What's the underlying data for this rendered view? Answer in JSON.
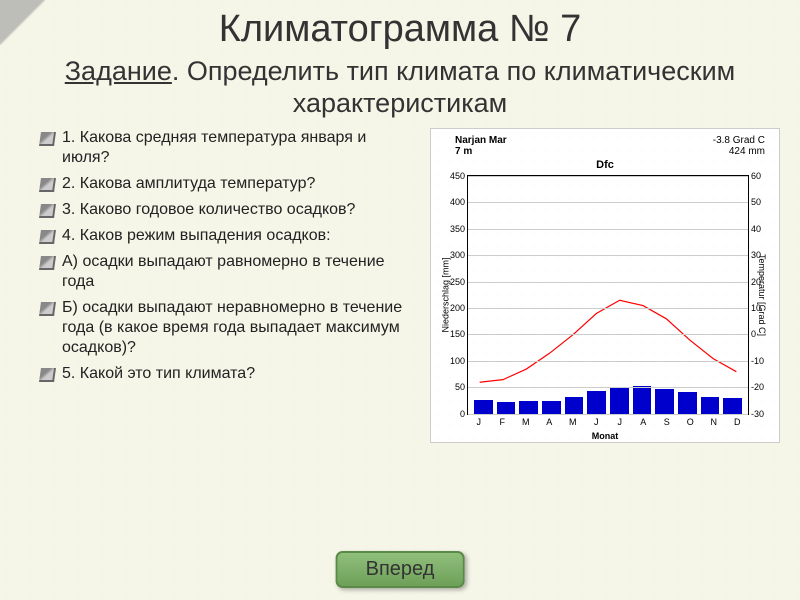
{
  "title": "Климатограмма № 7",
  "subtitle_prefix": "Задание",
  "subtitle_rest": ". Определить тип климата по климатическим характеристикам",
  "questions": [
    "1. Какова средняя температура января и июля?",
    "2. Какова амплитуда температур?",
    "3. Каково годовое количество осадков?",
    "4. Каков режим выпадения осадков:",
    "А) осадки выпадают равномерно в течение года",
    "Б) осадки выпадают неравномерно в течение года (в какое время года выпадает максимум осадков)?",
    "5. Какой это тип климата?"
  ],
  "button_label": "Вперед",
  "chart": {
    "station": "Narjan Mar",
    "elevation": "7 m",
    "mean_temp": "-3.8 Grad C",
    "annual_precip": "424 mm",
    "classification": "Dfc",
    "ylabel_left": "Niederschlag [mm]",
    "ylabel_right": "Temperatur [Grad C]",
    "xlabel": "Monat",
    "precip_max": 450,
    "precip_ticks": [
      0,
      50,
      100,
      150,
      200,
      250,
      300,
      350,
      400,
      450
    ],
    "temp_ticks": [
      -30,
      -20,
      -10,
      0,
      10,
      20,
      30,
      40,
      50,
      60
    ],
    "months": [
      "J",
      "F",
      "M",
      "A",
      "M",
      "J",
      "J",
      "A",
      "S",
      "O",
      "N",
      "D"
    ],
    "precip_values": [
      27,
      22,
      24,
      25,
      32,
      43,
      48,
      52,
      47,
      42,
      32,
      30
    ],
    "temp_values": [
      -18,
      -17,
      -13,
      -7,
      0,
      8,
      13,
      11,
      6,
      -2,
      -9,
      -14
    ],
    "temp_min": -30,
    "temp_max": 60,
    "bar_color": "#0000cc",
    "line_color": "#ff0000",
    "grid_color": "#cccccc"
  }
}
